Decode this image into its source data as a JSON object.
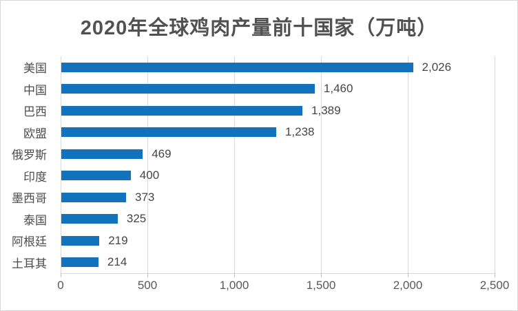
{
  "title": "2020年全球鸡肉产量前十国家（万吨）",
  "colors": {
    "bar": "#1272bc",
    "gridline": "#d9d9d9",
    "tick": "#bfbfbf",
    "title_text": "#515151",
    "label_text": "#4d4d4d",
    "frame_border": "#d6d6d6"
  },
  "chart_data": {
    "type": "bar",
    "orientation": "horizontal",
    "title": "2020年全球鸡肉产量前十国家（万吨）",
    "categories": [
      "美国",
      "中国",
      "巴西",
      "欧盟",
      "俄罗斯",
      "印度",
      "墨西哥",
      "泰国",
      "阿根廷",
      "土耳其"
    ],
    "values": [
      2026,
      1460,
      1389,
      1238,
      469,
      400,
      373,
      325,
      219,
      214
    ],
    "value_labels": [
      "2,026",
      "1,460",
      "1,389",
      "1,238",
      "469",
      "400",
      "373",
      "325",
      "219",
      "214"
    ],
    "xlabel": "",
    "ylabel": "",
    "xlim": [
      0,
      2500
    ],
    "x_ticks": [
      0,
      500,
      1000,
      1500,
      2000,
      2500
    ],
    "x_tick_labels": [
      "0",
      "500",
      "1,000",
      "1,500",
      "2,000",
      "2,500"
    ],
    "grid": true,
    "legend": false,
    "data_labels": true
  }
}
